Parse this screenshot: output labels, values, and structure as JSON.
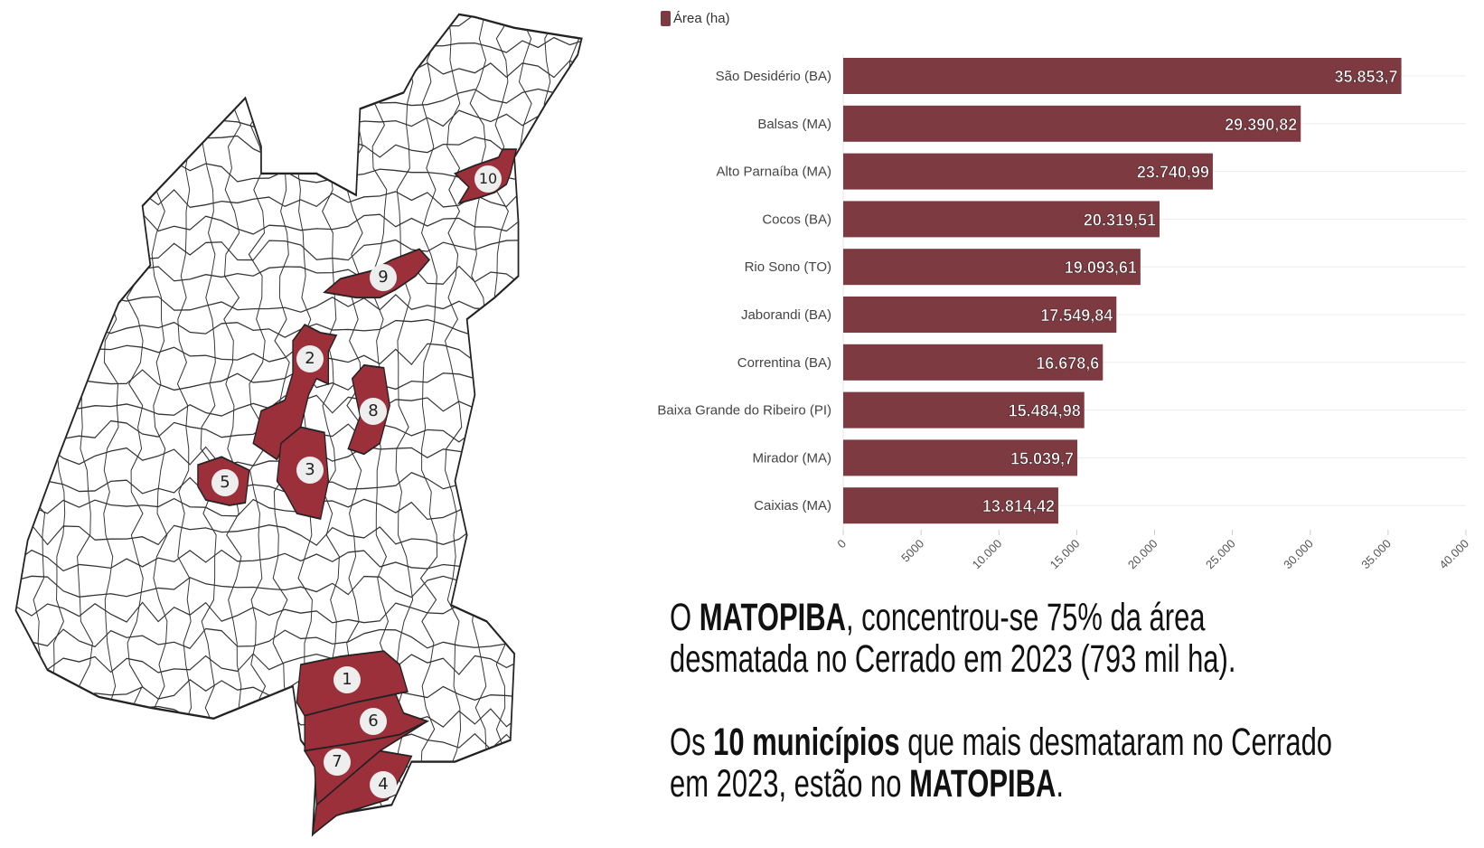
{
  "map": {
    "labels": [
      "1",
      "2",
      "3",
      "4",
      "5",
      "6",
      "7",
      "8",
      "9",
      "10"
    ],
    "highlight_color": "#9b2f3a"
  },
  "chart_data": {
    "type": "bar",
    "orientation": "horizontal",
    "categories": [
      "São Desidério (BA)",
      "Balsas (MA)",
      "Alto Parnaíba (MA)",
      "Cocos (BA)",
      "Rio Sono (TO)",
      "Jaborandi (BA)",
      "Correntina (BA)",
      "Baixa Grande do Ribeiro (PI)",
      "Mirador (MA)",
      "Caixias (MA)"
    ],
    "series": [
      {
        "name": "Área (ha)",
        "values": [
          35853.7,
          29390.82,
          23740.99,
          20319.51,
          19093.61,
          17549.84,
          16678.6,
          15484.98,
          15039.7,
          13814.42
        ],
        "color": "#7d3a41"
      }
    ],
    "data_labels": [
      "35.853,7",
      "29.390,82",
      "23.740,99",
      "20.319,51",
      "19.093,61",
      "17.549,84",
      "16.678,6",
      "15.484,98",
      "15.039,7",
      "13.814,42"
    ],
    "xlim": [
      0,
      40000
    ],
    "x_ticks": [
      0,
      5000,
      10000,
      15000,
      20000,
      25000,
      30000,
      35000,
      40000
    ],
    "x_tick_labels": [
      "0",
      "5000",
      "10.000",
      "15.000",
      "20.000",
      "25.000",
      "30.000",
      "35.000",
      "40.000"
    ],
    "legend": "top-left",
    "grid": true
  },
  "text": {
    "p1": {
      "a": "O ",
      "b": "MATOPIBA",
      "c": ", concentrou-se 75% da área desmatada no Cerrado em 2023 (793 mil ha)."
    },
    "p2": {
      "a": "Os ",
      "b": "10 municípios",
      "c": " que mais desmataram no Cerrado em 2023, estão no ",
      "d": "MATOPIBA",
      "e": "."
    }
  }
}
